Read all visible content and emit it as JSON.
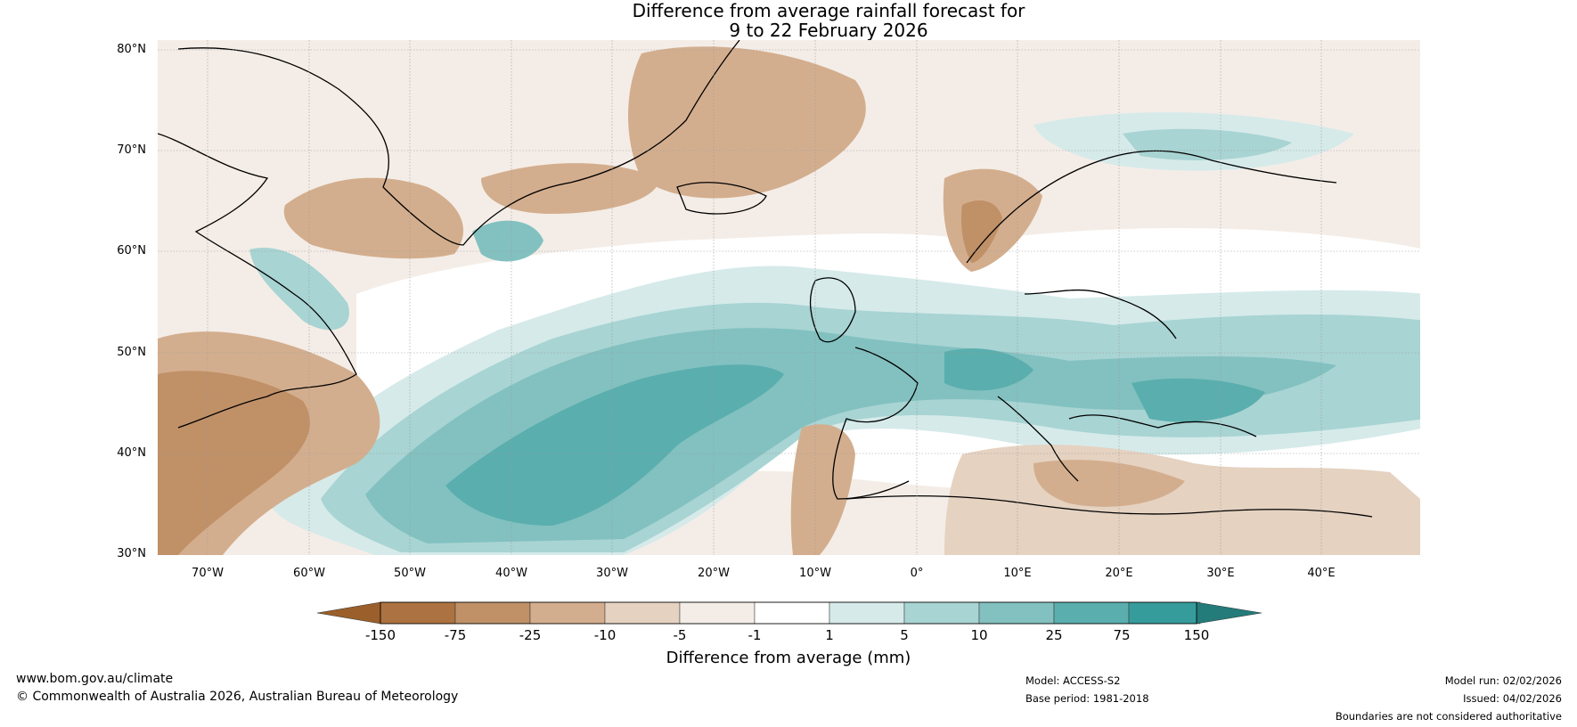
{
  "title": {
    "line1": "Difference from average rainfall forecast for",
    "line2": "9 to 22 February 2026"
  },
  "axes": {
    "lat_labels": [
      "80°N",
      "70°N",
      "60°N",
      "50°N",
      "40°N",
      "30°N"
    ],
    "lon_labels": [
      "70°W",
      "60°W",
      "50°W",
      "40°W",
      "30°W",
      "20°W",
      "10°W",
      "0°",
      "10°E",
      "20°E",
      "30°E",
      "40°E"
    ]
  },
  "colorbar": {
    "ticks": [
      "-150",
      "-75",
      "-25",
      "-10",
      "-5",
      "-1",
      "1",
      "5",
      "10",
      "25",
      "75",
      "150"
    ],
    "label": "Difference from average (mm)",
    "colors": [
      "#9a5f2a",
      "#ad7241",
      "#c09067",
      "#d3ae8e",
      "#e5d2c1",
      "#f4ede7",
      "#ffffff",
      "#d6eaea",
      "#a8d4d3",
      "#82c1c0",
      "#5aaeae",
      "#369c9b",
      "#237b7a"
    ]
  },
  "footer": {
    "website": "www.bom.gov.au/climate",
    "copyright": "© Commonwealth of Australia 2026, Australian Bureau of Meteorology",
    "model": "Model: ACCESS-S2",
    "base_period": "Base period: 1981-2018",
    "model_run": "Model run: 02/02/2026",
    "issued": "Issued: 04/02/2026",
    "disclaimer": "Boundaries are not considered authoritative"
  }
}
